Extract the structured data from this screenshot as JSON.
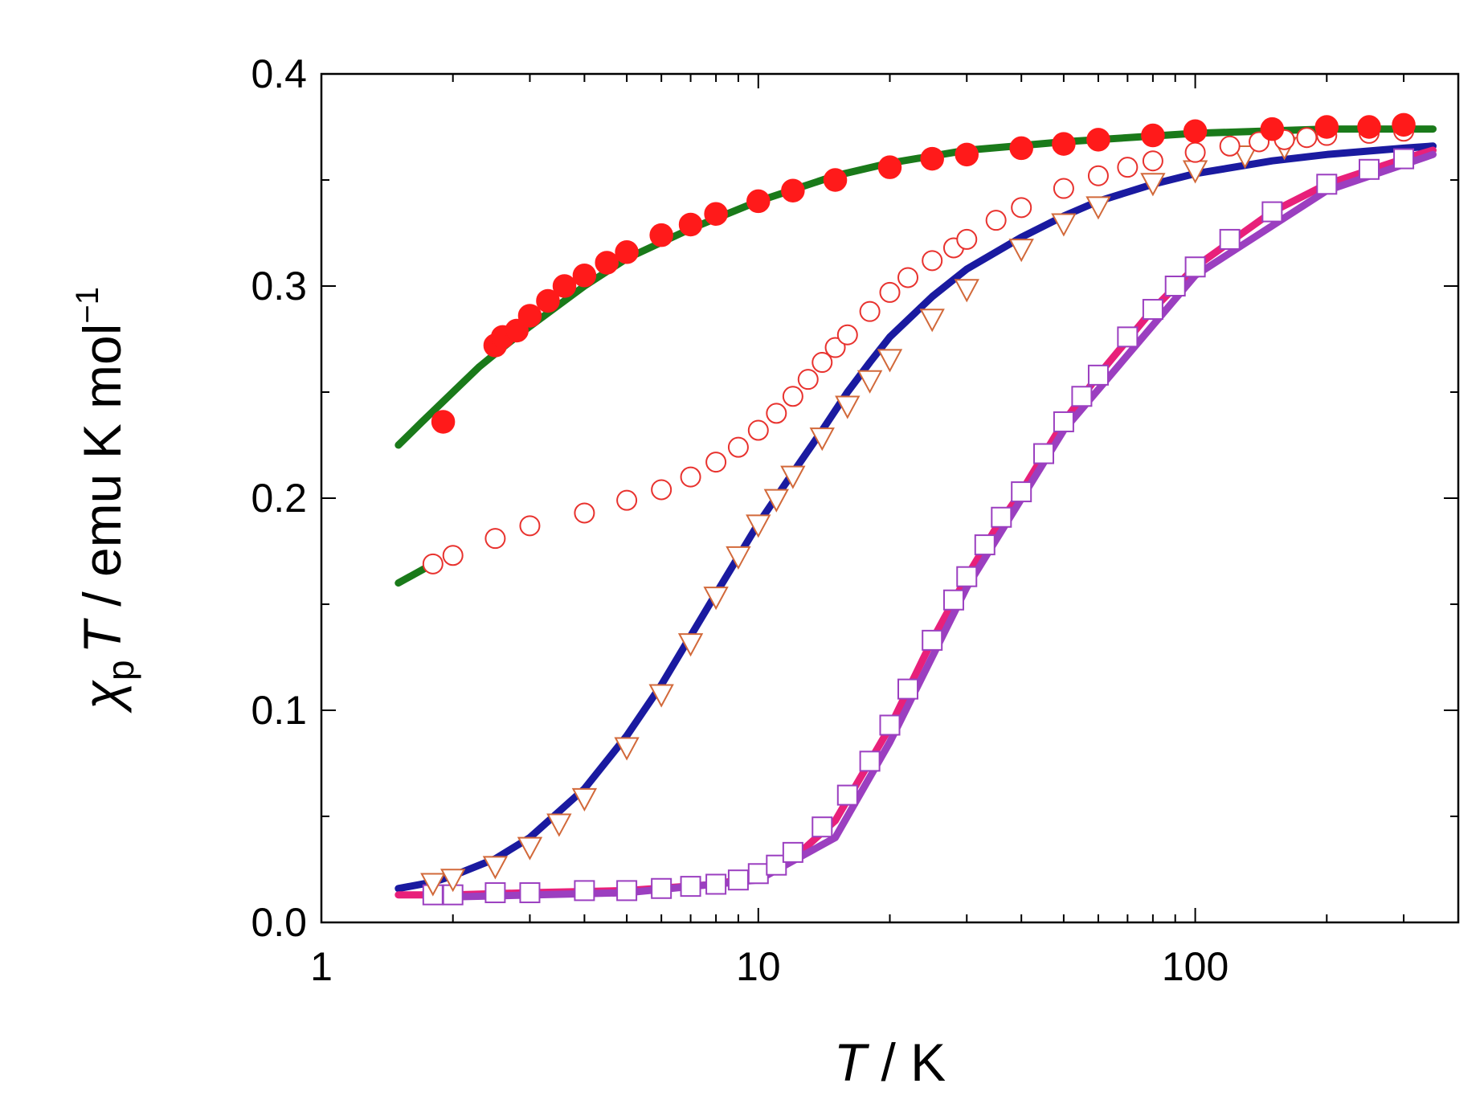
{
  "chart_data": {
    "type": "scatter",
    "title": "",
    "xscale": "log",
    "xlim": [
      1,
      400
    ],
    "ylim": [
      0.0,
      0.4
    ],
    "x_ticks": [
      "1",
      "10",
      "100"
    ],
    "y_ticks": [
      "0.0",
      "0.1",
      "0.2",
      "0.3",
      "0.4"
    ],
    "xlabel": {
      "italic": "T",
      "rest": " / K"
    },
    "ylabel": {
      "chi": "χ",
      "sub": "p",
      "T": "T",
      "rest": " / emu K mol",
      "sup": "−1"
    },
    "series": [
      {
        "name": "filled red circles",
        "marker": "filled-circle",
        "color": "#ff1a1a",
        "x": [
          1.9,
          2.5,
          2.6,
          2.8,
          3.0,
          3.3,
          3.6,
          4.0,
          4.5,
          5.0,
          6.0,
          7.0,
          8.0,
          10,
          12,
          15,
          20,
          25,
          30,
          40,
          50,
          60,
          80,
          100,
          150,
          200,
          250,
          300
        ],
        "y": [
          0.236,
          0.272,
          0.276,
          0.279,
          0.286,
          0.293,
          0.3,
          0.305,
          0.311,
          0.316,
          0.324,
          0.329,
          0.334,
          0.34,
          0.345,
          0.35,
          0.356,
          0.36,
          0.362,
          0.365,
          0.367,
          0.369,
          0.371,
          0.373,
          0.374,
          0.375,
          0.375,
          0.376
        ]
      },
      {
        "name": "open red circles",
        "marker": "open-circle",
        "color": "#e8322e",
        "x": [
          1.8,
          2.0,
          2.5,
          3.0,
          4.0,
          5.0,
          6.0,
          7.0,
          8.0,
          9.0,
          10,
          11,
          12,
          13,
          14,
          15,
          16,
          18,
          20,
          22,
          25,
          28,
          30,
          35,
          40,
          50,
          60,
          70,
          80,
          100,
          120,
          140,
          160,
          180,
          200,
          250,
          300
        ],
        "y": [
          0.169,
          0.173,
          0.181,
          0.187,
          0.193,
          0.199,
          0.204,
          0.21,
          0.217,
          0.224,
          0.232,
          0.24,
          0.248,
          0.256,
          0.264,
          0.271,
          0.277,
          0.288,
          0.297,
          0.304,
          0.312,
          0.318,
          0.322,
          0.331,
          0.337,
          0.346,
          0.352,
          0.356,
          0.359,
          0.363,
          0.366,
          0.368,
          0.369,
          0.37,
          0.371,
          0.372,
          0.373
        ]
      },
      {
        "name": "open triangles",
        "marker": "open-triangle",
        "color": "#d2693a",
        "x": [
          1.8,
          2.0,
          2.5,
          3.0,
          3.5,
          4.0,
          5.0,
          6.0,
          7.0,
          8.0,
          9.0,
          10,
          11,
          12,
          14,
          16,
          18,
          20,
          25,
          30,
          40,
          50,
          60,
          80,
          100,
          130,
          160
        ],
        "y": [
          0.018,
          0.02,
          0.026,
          0.035,
          0.046,
          0.058,
          0.082,
          0.107,
          0.131,
          0.153,
          0.172,
          0.187,
          0.199,
          0.21,
          0.228,
          0.243,
          0.255,
          0.265,
          0.284,
          0.298,
          0.317,
          0.329,
          0.337,
          0.348,
          0.354,
          0.361,
          0.365
        ]
      },
      {
        "name": "open squares",
        "marker": "open-square",
        "color": "#9b3fc0",
        "x": [
          1.8,
          2.0,
          2.5,
          3.0,
          4.0,
          5.0,
          6.0,
          7.0,
          8.0,
          9.0,
          10,
          11,
          12,
          14,
          16,
          18,
          20,
          22,
          25,
          28,
          30,
          33,
          36,
          40,
          45,
          50,
          55,
          60,
          70,
          80,
          90,
          100,
          120,
          150,
          200,
          250,
          300
        ],
        "y": [
          0.013,
          0.013,
          0.014,
          0.014,
          0.015,
          0.015,
          0.016,
          0.017,
          0.018,
          0.02,
          0.023,
          0.027,
          0.033,
          0.045,
          0.06,
          0.076,
          0.093,
          0.11,
          0.133,
          0.152,
          0.163,
          0.178,
          0.191,
          0.203,
          0.221,
          0.236,
          0.248,
          0.258,
          0.276,
          0.289,
          0.3,
          0.309,
          0.322,
          0.335,
          0.348,
          0.355,
          0.36
        ]
      },
      {
        "name": "green fit (filled)",
        "marker": "line",
        "color": "#1a7a1a",
        "x": [
          1.5,
          1.7,
          2.0,
          2.3,
          2.6,
          3.0,
          4.0,
          5.0,
          7.0,
          10,
          15,
          20,
          30,
          50,
          100,
          200,
          350
        ],
        "y": [
          0.225,
          0.236,
          0.25,
          0.262,
          0.271,
          0.281,
          0.3,
          0.313,
          0.327,
          0.34,
          0.352,
          0.358,
          0.364,
          0.368,
          0.372,
          0.374,
          0.374
        ]
      },
      {
        "name": "green fit (open circles)",
        "marker": "line",
        "color": "#1a7a1a",
        "x": [
          1.5,
          1.8
        ],
        "y": [
          0.16,
          0.169
        ]
      },
      {
        "name": "blue fit",
        "marker": "line",
        "color": "#1a1aa0",
        "x": [
          1.5,
          1.8,
          2.0,
          2.5,
          3.0,
          4.0,
          5.0,
          6.0,
          8.0,
          10,
          12,
          14,
          16,
          18,
          20,
          25,
          30,
          40,
          50,
          60,
          80,
          100,
          150,
          200,
          300,
          350
        ],
        "y": [
          0.016,
          0.019,
          0.022,
          0.03,
          0.04,
          0.063,
          0.088,
          0.112,
          0.155,
          0.188,
          0.212,
          0.232,
          0.25,
          0.264,
          0.276,
          0.295,
          0.308,
          0.323,
          0.333,
          0.34,
          0.348,
          0.353,
          0.359,
          0.362,
          0.365,
          0.366
        ]
      },
      {
        "name": "magenta fit",
        "marker": "line",
        "color": "#e8207a",
        "x": [
          1.5,
          2.0,
          3.0,
          5.0,
          8.0,
          10,
          12,
          15,
          20,
          25,
          30,
          35,
          40,
          50,
          60,
          80,
          100,
          150,
          200,
          300,
          350
        ],
        "y": [
          0.013,
          0.013,
          0.014,
          0.015,
          0.018,
          0.022,
          0.03,
          0.048,
          0.092,
          0.133,
          0.163,
          0.186,
          0.203,
          0.236,
          0.258,
          0.289,
          0.309,
          0.335,
          0.348,
          0.36,
          0.364
        ]
      },
      {
        "name": "purple fit",
        "marker": "line",
        "color": "#9b3fc0",
        "x": [
          2.0,
          5.0,
          10,
          15,
          20,
          30,
          50,
          100,
          200,
          350
        ],
        "y": [
          0.012,
          0.014,
          0.02,
          0.04,
          0.085,
          0.158,
          0.232,
          0.305,
          0.345,
          0.362
        ]
      }
    ]
  }
}
